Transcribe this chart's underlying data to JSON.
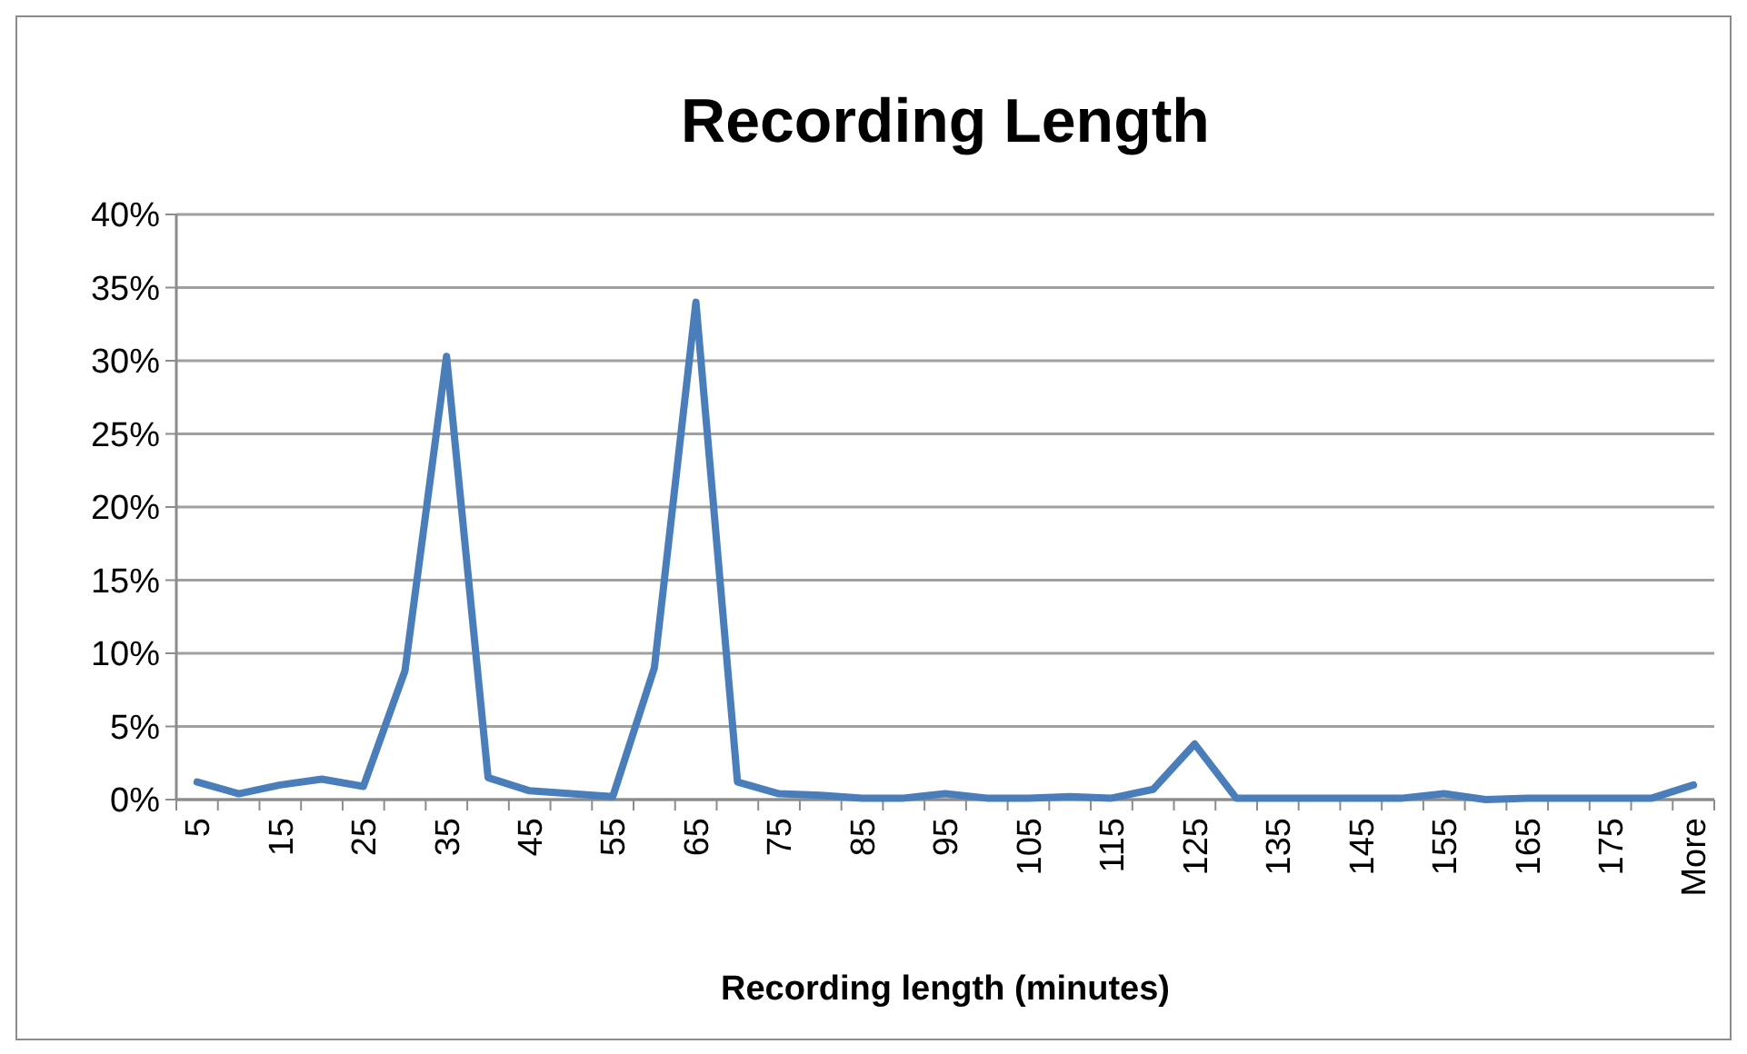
{
  "chart_data": {
    "type": "line",
    "title": "Recording Length",
    "xlabel": "Recording length (minutes)",
    "categories": [
      "5",
      null,
      "15",
      null,
      "25",
      null,
      "35",
      null,
      "45",
      null,
      "55",
      null,
      "65",
      null,
      "75",
      null,
      "85",
      null,
      "95",
      null,
      "105",
      null,
      "115",
      null,
      "125",
      null,
      "135",
      null,
      "145",
      null,
      "155",
      null,
      "165",
      null,
      "175",
      null,
      "More"
    ],
    "series": [
      {
        "color": "#4a7ebb",
        "values": [
          1.2,
          0.4,
          1.0,
          1.4,
          0.9,
          8.8,
          30.3,
          1.5,
          0.6,
          0.4,
          0.2,
          9.0,
          34.0,
          1.2,
          0.4,
          0.3,
          0.1,
          0.1,
          0.4,
          0.1,
          0.1,
          0.2,
          0.1,
          0.7,
          3.8,
          0.1,
          0.1,
          0.1,
          0.1,
          0.1,
          0.4,
          0.0,
          0.1,
          0.1,
          0.1,
          0.1,
          1.0
        ]
      }
    ],
    "ylim": [
      0,
      40
    ],
    "yticks": [
      {
        "value": 0,
        "label": "0%"
      },
      {
        "value": 5,
        "label": "5%"
      },
      {
        "value": 10,
        "label": "10%"
      },
      {
        "value": 15,
        "label": "15%"
      },
      {
        "value": 20,
        "label": "20%"
      },
      {
        "value": 25,
        "label": "25%"
      },
      {
        "value": 30,
        "label": "30%"
      },
      {
        "value": 35,
        "label": "35%"
      },
      {
        "value": 40,
        "label": "40%"
      }
    ],
    "grid": "y",
    "marker": "none",
    "line_style": "solid"
  }
}
